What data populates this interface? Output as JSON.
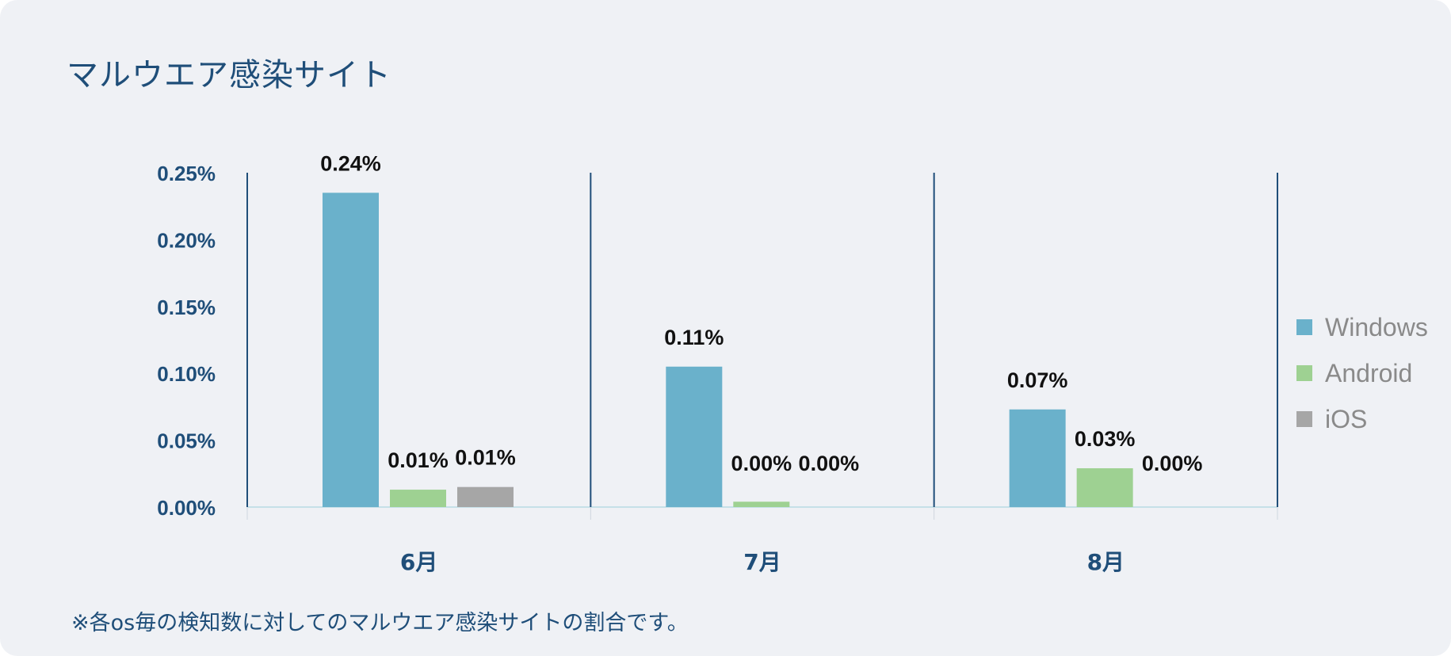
{
  "title": "マルウエア感染サイト",
  "note": "※各os毎の検知数に対してのマルウエア感染サイトの割合です。",
  "colors": {
    "Windows": "#6ab1cb",
    "Android": "#9ed192",
    "iOS": "#a6a6a6",
    "axis": "#1f4e79"
  },
  "chart_data": {
    "type": "bar",
    "title": "マルウエア感染サイト",
    "categories": [
      "6月",
      "7月",
      "8月"
    ],
    "series": [
      {
        "name": "Windows",
        "values": [
          0.235,
          0.105,
          0.073
        ],
        "labels": [
          "0.24%",
          "0.11%",
          "0.07%"
        ]
      },
      {
        "name": "Android",
        "values": [
          0.013,
          0.004,
          0.029
        ],
        "labels": [
          "0.01%",
          "0.00%",
          "0.03%"
        ]
      },
      {
        "name": "iOS",
        "values": [
          0.015,
          0.0,
          0.0
        ],
        "labels": [
          "0.01%",
          "0.00%",
          "0.00%"
        ]
      }
    ],
    "yticks": [
      "0.00%",
      "0.05%",
      "0.10%",
      "0.15%",
      "0.20%",
      "0.25%"
    ],
    "ylim": [
      0,
      0.25
    ],
    "legend_position": "right",
    "grid": false
  }
}
